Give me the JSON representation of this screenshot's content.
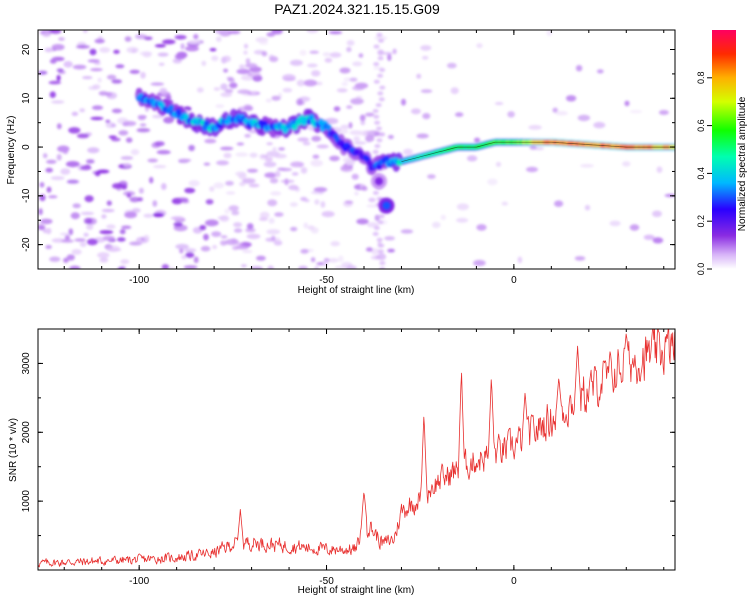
{
  "figure": {
    "title": "PAZ1.2024.321.15.15.G09"
  },
  "chart_data": [
    {
      "type": "heatmap",
      "xlabel": "Height of straight line (km)",
      "ylabel": "Frequency (Hz)",
      "xlim": [
        -127,
        43
      ],
      "ylim": [
        -25,
        24
      ],
      "xticks": [
        -100,
        -50,
        0
      ],
      "yticks": [
        -20,
        -10,
        0,
        10,
        20
      ],
      "colorbar": {
        "label": "Normalized spectral amplitude",
        "range": [
          0,
          1
        ],
        "ticks": [
          0.0,
          0.2,
          0.4,
          0.6,
          0.8
        ]
      },
      "ridge": {
        "x": [
          -100,
          -95,
          -90,
          -85,
          -80,
          -75,
          -70,
          -65,
          -60,
          -55,
          -50,
          -45,
          -40,
          -38,
          -35,
          -32,
          -30,
          -25,
          -20,
          -15,
          -10,
          -5,
          0,
          5,
          10,
          20,
          30,
          40
        ],
        "y": [
          10,
          9,
          7,
          5,
          4,
          6,
          5,
          4,
          4,
          6,
          4,
          0,
          -2,
          -4,
          -3,
          -3,
          -3,
          -2,
          -1,
          0,
          0,
          1,
          1,
          1,
          1,
          0.5,
          0,
          0
        ],
        "amplitude": [
          0.3,
          0.3,
          0.3,
          0.35,
          0.35,
          0.35,
          0.35,
          0.3,
          0.35,
          0.35,
          0.3,
          0.25,
          0.25,
          0.25,
          0.3,
          0.35,
          0.4,
          0.45,
          0.5,
          0.55,
          0.55,
          0.6,
          0.6,
          0.75,
          0.85,
          0.85,
          0.85,
          0.8
        ]
      },
      "extra_blobs": [
        {
          "x": -34,
          "y": -12,
          "amplitude": 0.3
        },
        {
          "x": -36,
          "y": -7,
          "amplitude": 0.15
        }
      ]
    },
    {
      "type": "line",
      "xlabel": "Height of straight line (km)",
      "ylabel": "SNR (10 * v/v)",
      "xlim": [
        -127,
        43
      ],
      "ylim": [
        0,
        3500
      ],
      "xticks": [
        -100,
        -50,
        0
      ],
      "yticks": [
        1000,
        2000,
        3000
      ],
      "color": "#e8302f",
      "trend": {
        "x": [
          -127,
          -110,
          -100,
          -90,
          -80,
          -75,
          -70,
          -60,
          -50,
          -42,
          -40,
          -38,
          -35,
          -32,
          -30,
          -25,
          -20,
          -10,
          0,
          10,
          20,
          30,
          43
        ],
        "y": [
          100,
          130,
          150,
          180,
          250,
          380,
          400,
          350,
          300,
          300,
          700,
          600,
          380,
          450,
          850,
          1050,
          1300,
          1600,
          1800,
          2200,
          2600,
          3000,
          3250
        ]
      },
      "spikes": [
        {
          "x": -73,
          "y": 880
        },
        {
          "x": -40,
          "y": 1150
        },
        {
          "x": -24,
          "y": 2280
        },
        {
          "x": -14,
          "y": 2930
        },
        {
          "x": -6,
          "y": 2820
        },
        {
          "x": 3,
          "y": 2600
        },
        {
          "x": 12,
          "y": 2800
        },
        {
          "x": 17,
          "y": 3250
        },
        {
          "x": 30,
          "y": 3450
        }
      ]
    }
  ]
}
